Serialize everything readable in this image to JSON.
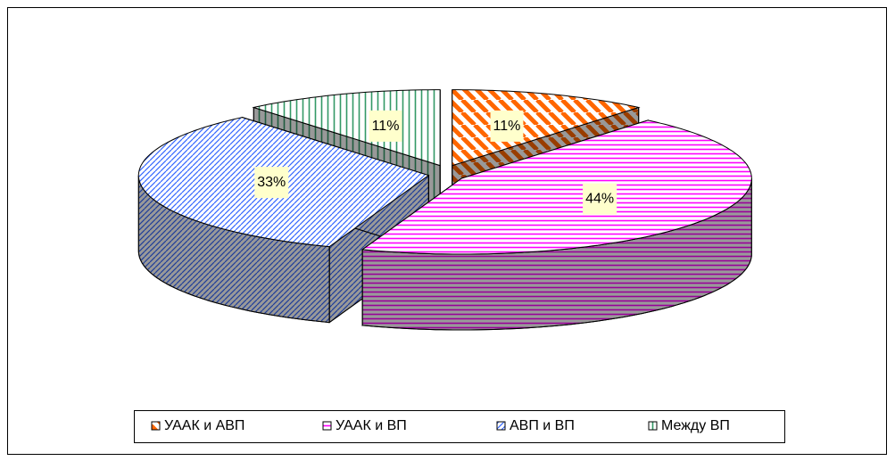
{
  "chart_data": {
    "type": "pie",
    "categories": [
      "УААК и АВП",
      "УААК и ВП",
      "АВП и ВП",
      "Между ВП"
    ],
    "values": [
      11,
      44,
      33,
      11
    ],
    "value_labels": [
      "11%",
      "44%",
      "33%",
      "11%"
    ],
    "colors": [
      "#ff6600",
      "#ff00ff",
      "#3366ff",
      "#339966"
    ],
    "legend": "bottom"
  }
}
